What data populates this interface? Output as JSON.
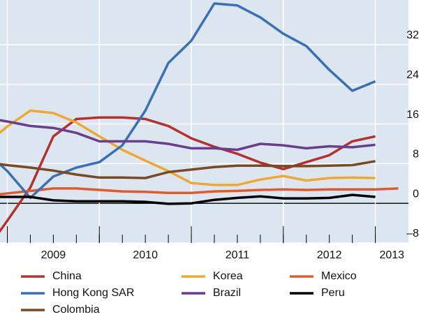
{
  "chart_data": {
    "type": "line",
    "x": [
      2008.75,
      2009.0,
      2009.25,
      2009.5,
      2009.75,
      2010.0,
      2010.25,
      2010.5,
      2010.75,
      2011.0,
      2011.25,
      2011.5,
      2011.75,
      2012.0,
      2012.25,
      2012.5,
      2012.75,
      2013.0,
      2013.25
    ],
    "xlim": [
      2008.92,
      2013.36
    ],
    "xgrid": [
      2009,
      2010,
      2011,
      2012,
      2013
    ],
    "xticks_minor": [
      2009,
      2009.25,
      2009.5,
      2009.75,
      2010,
      2010.25,
      2010.5,
      2010.75,
      2011,
      2011.25,
      2011.5,
      2011.75,
      2012,
      2012.25,
      2012.5,
      2012.75,
      2013
    ],
    "year_labels": [
      "2009",
      "2010",
      "2011",
      "2012",
      "2013"
    ],
    "ylim": [
      -8,
      41
    ],
    "yticks": [
      {
        "value": -8,
        "label": "–8"
      },
      0,
      8,
      16,
      24,
      32
    ],
    "grid": true,
    "series": [
      {
        "name": "China",
        "color": "#b5302f",
        "values": [
          -10,
          -3.5,
          3.2,
          13.5,
          17.0,
          17.3,
          17.3,
          17.0,
          15.6,
          13.1,
          11.4,
          10.0,
          8.2,
          6.9,
          8.3,
          9.7,
          12.5,
          13.5,
          null
        ]
      },
      {
        "name": "Korea",
        "color": "#f0a830",
        "values": [
          11.7,
          15.5,
          18.7,
          18.2,
          16.3,
          13.5,
          10.8,
          8.6,
          6.5,
          4.1,
          3.7,
          3.7,
          4.8,
          5.5,
          4.6,
          5.1,
          5.2,
          5.1,
          null
        ]
      },
      {
        "name": "Mexico",
        "color": "#e05a2b",
        "values": [
          1.5,
          2.0,
          2.5,
          3.0,
          3.0,
          2.7,
          2.4,
          2.3,
          2.1,
          2.1,
          2.4,
          2.5,
          2.7,
          2.8,
          2.7,
          2.8,
          2.8,
          2.8,
          3.0
        ]
      },
      {
        "name": "Hong Kong SAR",
        "color": "#3b6fb6",
        "values": [
          10.7,
          6.5,
          1.1,
          5.4,
          7.2,
          8.3,
          11.7,
          18.7,
          28.3,
          32.8,
          40.3,
          39.9,
          37.5,
          34.2,
          31.7,
          26.9,
          22.7,
          24.6,
          null
        ]
      },
      {
        "name": "Brazil",
        "color": "#6a3d8f",
        "values": [
          17.3,
          16.5,
          15.6,
          15.2,
          14.2,
          12.5,
          12.5,
          12.5,
          12.0,
          11.1,
          11.1,
          10.8,
          12.0,
          11.7,
          11.1,
          11.5,
          11.3,
          11.8,
          null
        ]
      },
      {
        "name": "Peru",
        "color": "#000000",
        "values": [
          1.3,
          1.3,
          1.3,
          0.6,
          0.4,
          0.4,
          0.4,
          0.3,
          -0.1,
          0,
          0.7,
          1.1,
          1.4,
          1.0,
          1.0,
          1.1,
          1.7,
          1.3,
          null
        ]
      },
      {
        "name": "Colombia",
        "color": "#7a4a22",
        "values": [
          8.3,
          7.7,
          7.2,
          6.6,
          5.8,
          5.2,
          5.2,
          5.1,
          6.3,
          6.8,
          7.3,
          7.6,
          7.6,
          7.5,
          7.5,
          7.6,
          7.7,
          8.5,
          null
        ]
      }
    ]
  }
}
